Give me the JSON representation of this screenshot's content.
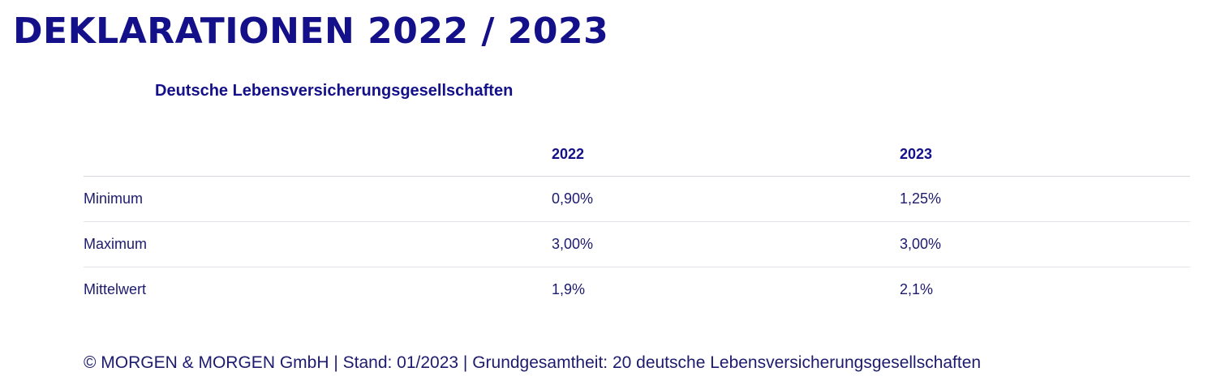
{
  "title": "Deklarationen 2022 / 2023",
  "subtitle": "Deutsche Lebensversicherungsgesellschaften",
  "table": {
    "headers": [
      "",
      "2022",
      "2023"
    ],
    "rows": [
      {
        "label": "Minimum",
        "v2022": "0,90%",
        "v2023": "1,25%"
      },
      {
        "label": "Maximum",
        "v2022": "3,00%",
        "v2023": "3,00%"
      },
      {
        "label": "Mittelwert",
        "v2022": "1,9%",
        "v2023": "2,1%"
      }
    ]
  },
  "footer": "© MORGEN & MORGEN GmbH | Stand: 01/2023 | Grundgesamtheit: 20 deutsche Lebensversicherungsgesellschaften",
  "colors": {
    "accent": "#13108a",
    "text": "#1d1b6e",
    "divider": "#d6d6dc"
  }
}
